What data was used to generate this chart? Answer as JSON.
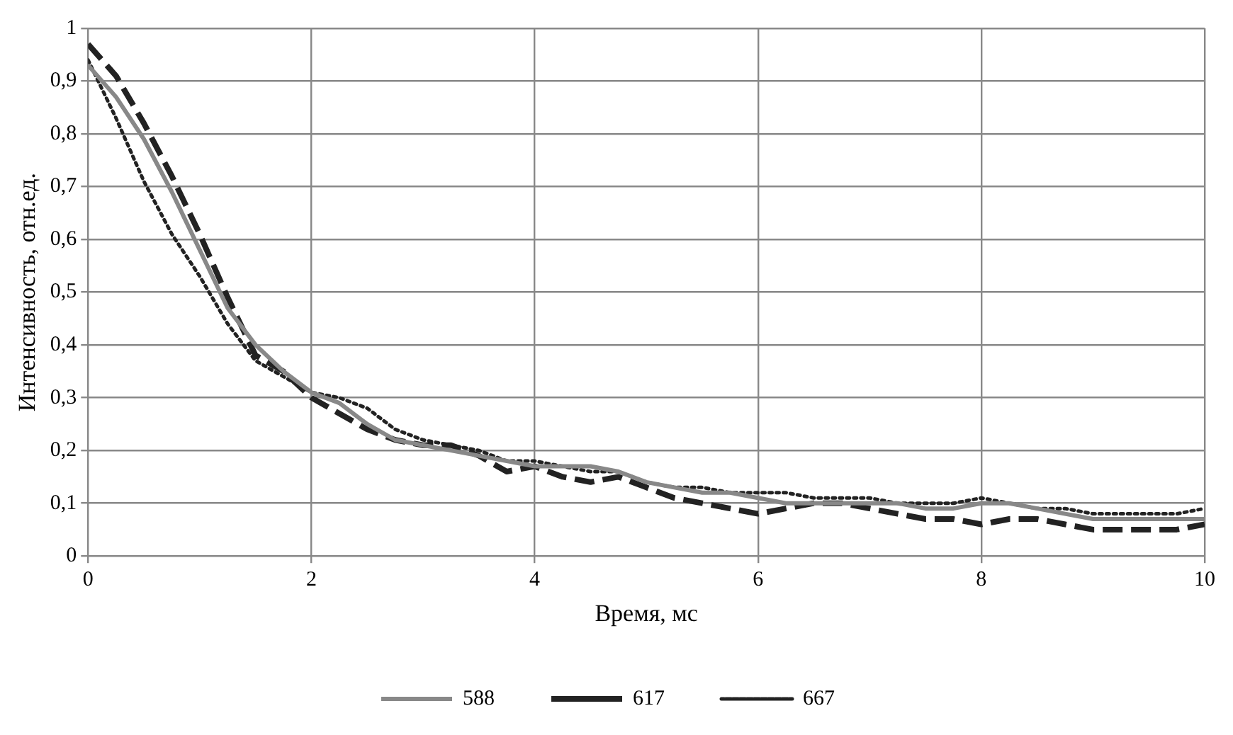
{
  "chart_data": {
    "type": "line",
    "xlabel": "Время, мс",
    "ylabel": "Интенсивность, отн.ед.",
    "x": [
      0,
      0.25,
      0.5,
      0.75,
      1,
      1.25,
      1.5,
      1.75,
      2,
      2.25,
      2.5,
      2.75,
      3,
      3.25,
      3.5,
      3.75,
      4,
      4.25,
      4.5,
      4.75,
      5,
      5.25,
      5.5,
      5.75,
      6,
      6.25,
      6.5,
      6.75,
      7,
      7.25,
      7.5,
      7.75,
      8,
      8.25,
      8.5,
      8.75,
      9,
      9.25,
      9.5,
      9.75,
      10
    ],
    "series": [
      {
        "name": "588",
        "color": "#888888",
        "line_style": "solid",
        "values": [
          0.93,
          0.87,
          0.79,
          0.69,
          0.58,
          0.47,
          0.4,
          0.35,
          0.31,
          0.29,
          0.25,
          0.22,
          0.21,
          0.2,
          0.19,
          0.18,
          0.17,
          0.17,
          0.17,
          0.16,
          0.14,
          0.13,
          0.12,
          0.12,
          0.11,
          0.1,
          0.1,
          0.1,
          0.1,
          0.1,
          0.09,
          0.09,
          0.1,
          0.1,
          0.09,
          0.08,
          0.07,
          0.07,
          0.07,
          0.07,
          0.07
        ]
      },
      {
        "name": "617",
        "color": "#222222",
        "line_style": "dashed",
        "values": [
          0.97,
          0.91,
          0.82,
          0.72,
          0.61,
          0.49,
          0.38,
          0.35,
          0.3,
          0.27,
          0.24,
          0.22,
          0.21,
          0.21,
          0.19,
          0.16,
          0.17,
          0.15,
          0.14,
          0.15,
          0.13,
          0.11,
          0.1,
          0.09,
          0.08,
          0.09,
          0.1,
          0.1,
          0.09,
          0.08,
          0.07,
          0.07,
          0.06,
          0.07,
          0.07,
          0.06,
          0.05,
          0.05,
          0.05,
          0.05,
          0.06
        ]
      },
      {
        "name": "667",
        "color": "#222222",
        "line_style": "dotted",
        "values": [
          0.94,
          0.83,
          0.71,
          0.61,
          0.53,
          0.44,
          0.37,
          0.34,
          0.31,
          0.3,
          0.28,
          0.24,
          0.22,
          0.21,
          0.2,
          0.18,
          0.18,
          0.17,
          0.16,
          0.16,
          0.14,
          0.13,
          0.13,
          0.12,
          0.12,
          0.12,
          0.11,
          0.11,
          0.11,
          0.1,
          0.1,
          0.1,
          0.11,
          0.1,
          0.09,
          0.09,
          0.08,
          0.08,
          0.08,
          0.08,
          0.09
        ]
      }
    ],
    "xlim": [
      0,
      10
    ],
    "xticks": [
      0,
      2,
      4,
      6,
      8,
      10
    ],
    "ylim": [
      0,
      1
    ],
    "yticks": [
      0,
      {
        "value": 0.1,
        "label": "0,1"
      },
      {
        "value": 0.2,
        "label": "0,2"
      },
      {
        "value": 0.3,
        "label": "0,3"
      },
      {
        "value": 0.4,
        "label": "0,4"
      },
      {
        "value": 0.5,
        "label": "0,5"
      },
      {
        "value": 0.6,
        "label": "0,6"
      },
      {
        "value": 0.7,
        "label": "0,7"
      },
      {
        "value": 0.8,
        "label": "0,8"
      },
      {
        "value": 0.9,
        "label": "0,9"
      },
      1
    ],
    "grid": true,
    "legend": "bottom",
    "marker": "none"
  }
}
